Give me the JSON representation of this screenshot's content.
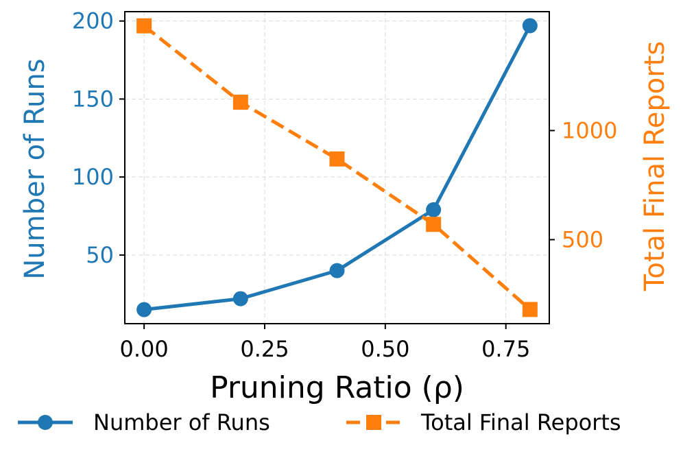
{
  "chart_data": {
    "type": "line",
    "xlabel": "Pruning Ratio (ρ)",
    "x": [
      0.0,
      0.2,
      0.4,
      0.6,
      0.8
    ],
    "xticks": [
      "0.00",
      "0.25",
      "0.50",
      "0.75"
    ],
    "xtick_values": [
      0.0,
      0.25,
      0.5,
      0.75
    ],
    "xlim": [
      -0.04,
      0.84
    ],
    "grid": true,
    "series": [
      {
        "name": "Number of Runs",
        "axis": "left",
        "values": [
          15,
          22,
          40,
          79,
          197
        ],
        "color": "#1f77b4",
        "line_style": "solid",
        "marker": "circle"
      },
      {
        "name": "Total Final Reports",
        "axis": "right",
        "values": [
          1480,
          1130,
          870,
          570,
          180
        ],
        "color": "#ff7f0e",
        "line_style": "dashed",
        "marker": "square"
      }
    ],
    "y_left": {
      "label": "Number of Runs",
      "ticks": [
        50,
        100,
        150,
        200
      ],
      "ylim": [
        6,
        206
      ],
      "color": "#1f77b4"
    },
    "y_right": {
      "label": "Total Final Reports",
      "ticks": [
        500,
        1000
      ],
      "ylim": [
        115,
        1545
      ],
      "color": "#ff7f0e"
    },
    "legend": {
      "placement": "bottom",
      "entries": [
        "Number of Runs",
        "Total Final Reports"
      ]
    }
  }
}
